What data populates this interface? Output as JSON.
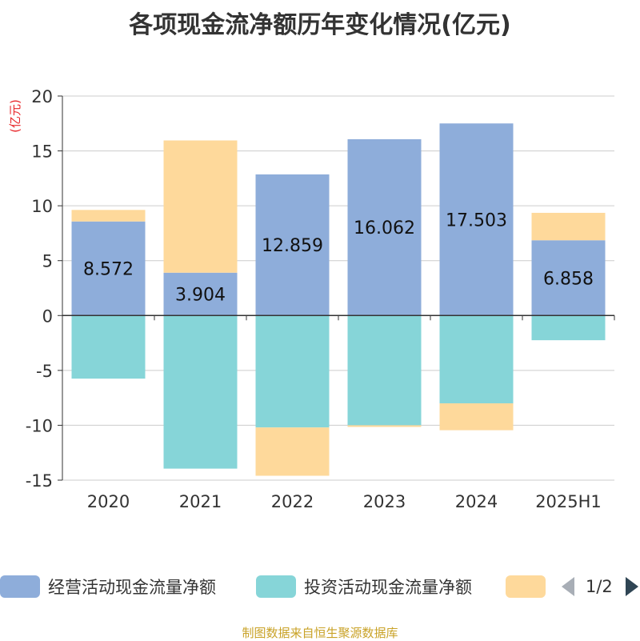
{
  "title": "各项现金流净额历年变化情况(亿元)",
  "source": "制图数据来自恒生聚源数据库",
  "legend": {
    "items": [
      {
        "label": "经营活动现金流量净额",
        "color": "#8eadda"
      },
      {
        "label": "投资活动现金流量净额",
        "color": "#86d5d8"
      },
      {
        "label": "",
        "color": "#fed99b"
      }
    ],
    "page": "1/2"
  },
  "chart_data": {
    "type": "bar",
    "stacked": true,
    "categories": [
      "2020",
      "2021",
      "2022",
      "2023",
      "2024",
      "2025H1"
    ],
    "ylabel": "(亿元)",
    "ylim": [
      -15,
      20
    ],
    "yticks": [
      -15,
      -10,
      -5,
      0,
      5,
      10,
      15,
      20
    ],
    "grid": true,
    "legend_position": "bottom",
    "series": [
      {
        "name": "经营活动现金流量净额",
        "color": "#8eadda",
        "values": [
          8.572,
          3.904,
          12.859,
          16.062,
          17.503,
          6.858
        ],
        "labels": [
          "8.572",
          "3.904",
          "12.859",
          "16.062",
          "17.503",
          "6.858"
        ]
      },
      {
        "name": "投资活动现金流量净额",
        "color": "#86d5d8",
        "values": [
          -5.75,
          -13.95,
          -10.2,
          -10.0,
          -8.0,
          -2.25
        ]
      },
      {
        "color": "#fed99b",
        "values": [
          1.05,
          12.05,
          -4.4,
          -0.15,
          -2.45,
          2.5
        ]
      }
    ]
  }
}
